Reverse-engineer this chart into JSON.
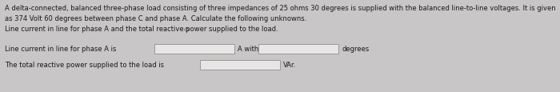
{
  "bg_color": "#c8c6c6",
  "text_color": "#1a1a1a",
  "box_color": "#e8e5e5",
  "box_edge_color": "#999999",
  "line1": "A delta-connected, balanced three-phase load consisting of three impedances of 25 ohms 30 degrees is supplied with the balanced line-to-line voltages. It is given",
  "line2": "as 374 Volt 60 degrees between phase C and phase A. Calculate the following unknowns.",
  "line3": "Line current in line for phase A and the total reactive power supplied to the load.",
  "arrow_sym": "◇",
  "label_line": "Line current in line for phase A is",
  "label_Awith": "A with",
  "label_degrees": "degrees",
  "label_reactive": "The total reactive power supplied to the load is",
  "label_VAr": "VAr.",
  "font_size_body": 6.0,
  "font_size_label": 6.0,
  "fig_width": 7.0,
  "fig_height": 1.16,
  "dpi": 100
}
